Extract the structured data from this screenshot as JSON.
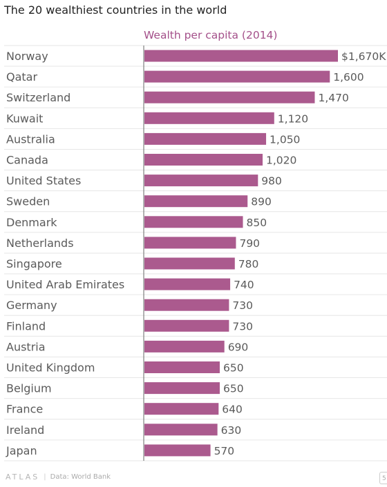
{
  "title": "The 20 wealthiest countries in the world",
  "footer": {
    "logo": "ATLAS",
    "source": "Data: World Bank",
    "corner_mark": "5"
  },
  "colors": {
    "bar": "#ab5a8e",
    "series_label": "#a4508a",
    "grid": "#e6e6e6",
    "axis": "#666666"
  },
  "chart_data": {
    "type": "bar",
    "orientation": "horizontal",
    "title": "The 20 wealthiest countries in the world",
    "series": [
      {
        "name": "Wealth per capita (2014)",
        "values": [
          1670,
          1600,
          1470,
          1120,
          1050,
          1020,
          980,
          890,
          850,
          790,
          780,
          740,
          730,
          730,
          690,
          650,
          650,
          640,
          630,
          570
        ]
      }
    ],
    "categories": [
      "Norway",
      "Qatar",
      "Switzerland",
      "Kuwait",
      "Australia",
      "Canada",
      "United States",
      "Sweden",
      "Denmark",
      "Netherlands",
      "Singapore",
      "United Arab Emirates",
      "Germany",
      "Finland",
      "Austria",
      "United Kingdom",
      "Belgium",
      "France",
      "Ireland",
      "Japan"
    ],
    "value_labels": [
      "$1,670K",
      "1,600",
      "1,470",
      "1,120",
      "1,050",
      "1,020",
      "980",
      "890",
      "850",
      "790",
      "780",
      "740",
      "730",
      "730",
      "690",
      "650",
      "650",
      "640",
      "630",
      "570"
    ],
    "xlim": [
      0,
      1670
    ],
    "grid": "horizontal row separators"
  }
}
